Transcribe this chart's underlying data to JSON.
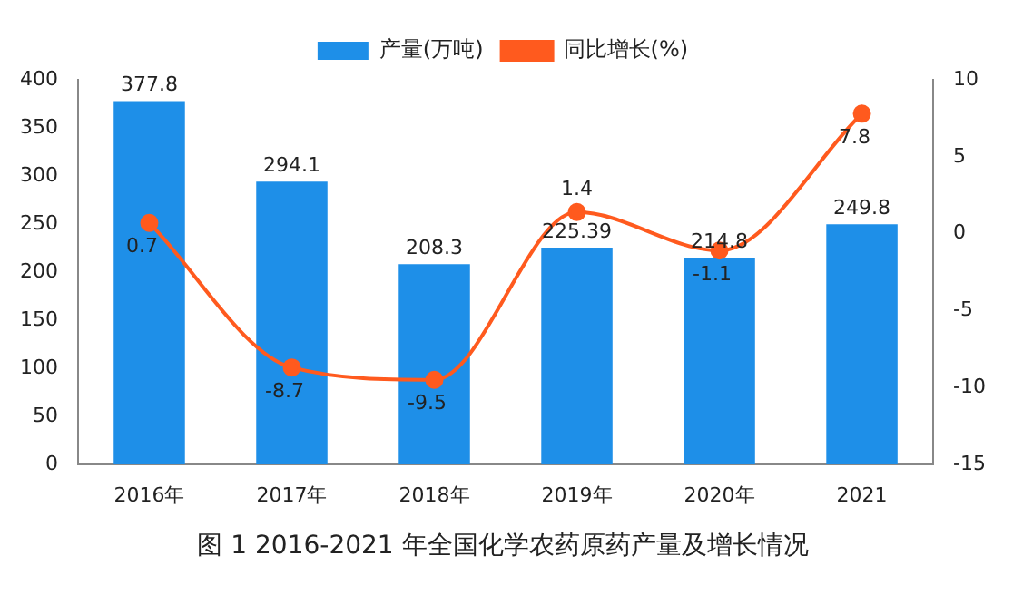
{
  "chart_data": {
    "type": "bar",
    "title": "图 1 2016-2021 年全国化学农药原药产量及增长情况",
    "categories": [
      "2016年",
      "2017年",
      "2018年",
      "2019年",
      "2020年",
      "2021"
    ],
    "series": [
      {
        "name": "产量(万吨)",
        "color": "#1e8fe8",
        "values": [
          377.8,
          294.1,
          208.3,
          225.39,
          214.8,
          249.8
        ]
      },
      {
        "name": "同比增长(%)",
        "type": "line",
        "axis": "y2",
        "color": "#ff5a1e",
        "values": [
          0.7,
          -8.7,
          -9.5,
          1.4,
          -1.1,
          7.8
        ]
      }
    ],
    "ylim": [
      0,
      400
    ],
    "yticks": [
      0,
      50,
      100,
      150,
      200,
      250,
      300,
      350,
      400
    ],
    "y2lim": [
      -15,
      10
    ],
    "y2ticks": [
      -15,
      -10,
      -5,
      0,
      5,
      10
    ],
    "data_labels": true,
    "legend": "top",
    "marker": "circle",
    "line_style": "solid"
  }
}
